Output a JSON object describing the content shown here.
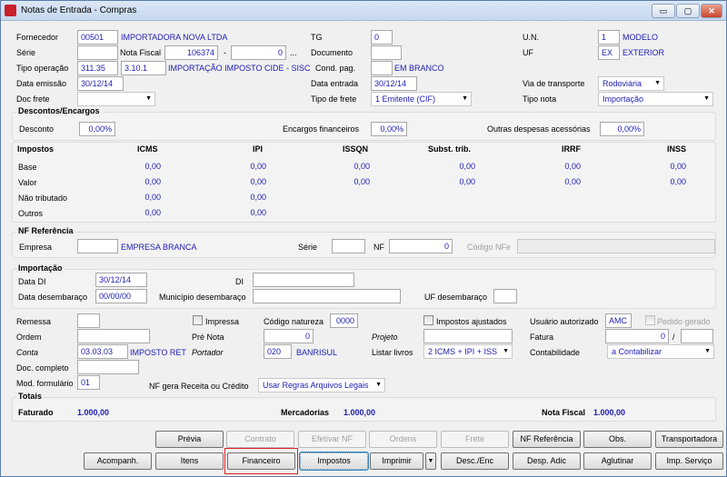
{
  "window": {
    "title": "Notas de Entrada - Compras",
    "min": "▭",
    "max": "▢",
    "close": "✕"
  },
  "header": {
    "fornecedor": {
      "label": "Fornecedor",
      "code": "00501",
      "name": "IMPORTADORA NOVA LTDA"
    },
    "tg": {
      "label": "TG",
      "value": "0"
    },
    "un": {
      "label": "U.N.",
      "code": "1",
      "name": "MODELO"
    },
    "serie": {
      "label": "Série",
      "value": ""
    },
    "nota_fiscal": {
      "label": "Nota Fiscal",
      "number": "106374",
      "sep": "-",
      "suffix": "0",
      "more": "..."
    },
    "documento": {
      "label": "Documento",
      "value": ""
    },
    "uf": {
      "label": "UF",
      "code": "EX",
      "name": "EXTERIOR"
    },
    "tipo_operacao": {
      "label": "Tipo operação",
      "code": "311.35",
      "cfop": "3.10.1",
      "name": "IMPORTAÇÃO IMPOSTO CIDE - SISC"
    },
    "cond_pag": {
      "label": "Cond. pag.",
      "code": "",
      "name": "EM BRANCO"
    },
    "data_emissao": {
      "label": "Data emissão",
      "value": "30/12/14"
    },
    "data_entrada": {
      "label": "Data entrada",
      "value": "30/12/14"
    },
    "via_transporte": {
      "label": "Via de transporte",
      "value": "Rodoviária"
    },
    "doc_frete": {
      "label": "Doc frete",
      "value": ""
    },
    "tipo_frete": {
      "label": "Tipo de frete",
      "value": "1 Emitente (CIF)"
    },
    "tipo_nota": {
      "label": "Tipo nota",
      "value": "Importação"
    }
  },
  "descontos": {
    "title": "Descontos/Encargos",
    "desconto_label": "Desconto",
    "desconto": "0,00%",
    "encargos_label": "Encargos financeiros",
    "encargos": "0,00%",
    "outras_label": "Outras despesas acessórias",
    "outras": "0,00%"
  },
  "impostos": {
    "title": "Impostos",
    "columns": [
      "ICMS",
      "IPI",
      "ISSQN",
      "Subst. trib.",
      "IRRF",
      "INSS"
    ],
    "rows": [
      {
        "label": "Base",
        "values": [
          "0,00",
          "0,00",
          "0,00",
          "0,00",
          "0,00",
          "0,00"
        ]
      },
      {
        "label": "Valor",
        "values": [
          "0,00",
          "0,00",
          "0,00",
          "0,00",
          "0,00",
          "0,00"
        ]
      },
      {
        "label": "Não tributado",
        "values": [
          "0,00",
          "0,00"
        ]
      },
      {
        "label": "Outros",
        "values": [
          "0,00",
          "0,00"
        ]
      }
    ]
  },
  "nf_referencia": {
    "title": "NF Referência",
    "empresa_label": "Empresa",
    "empresa_code": "",
    "empresa_name": "EMPRESA BRANCA",
    "serie_label": "Série",
    "serie": "",
    "nf_label": "NF",
    "nf": "0",
    "codigo_nfe_label": "Código NFe",
    "codigo_nfe": ""
  },
  "importacao": {
    "title": "Importação",
    "data_di_label": "Data DI",
    "data_di": "30/12/14",
    "di_label": "DI",
    "di": "",
    "data_desemb_label": "Data desembaraço",
    "data_desemb": "00/00/00",
    "municipio_label": "Município desembaraço",
    "municipio": "",
    "uf_desemb_label": "UF desembaraço",
    "uf_desemb": ""
  },
  "misc": {
    "remessa_label": "Remessa",
    "remessa": "",
    "impressa_label": "Impressa",
    "impressa": false,
    "codigo_natureza_label": "Código natureza",
    "codigo_natureza": "0000",
    "impostos_ajustados_label": "Impostos ajustados",
    "impostos_ajustados": false,
    "usuario_label": "Usuário autorizado",
    "usuario": "AMC",
    "pedido_gerado_label": "Pedido gerado",
    "pedido_gerado": false,
    "ordem_label": "Ordem",
    "ordem": "",
    "pre_nota_label": "Pré Nota",
    "pre_nota": "0",
    "projeto_label": "Projeto",
    "projeto": "",
    "fatura_label": "Fatura",
    "fatura": "0",
    "fatura_sep": "/",
    "fatura2": "",
    "conta_label": "Conta",
    "conta": "03.03.03",
    "conta_name": "IMPOSTO RET",
    "portador_label": "Portador",
    "portador": "020",
    "portador_name": "BANRISUL",
    "listar_livros_label": "Listar livros",
    "listar_livros": "2 ICMS + IPI + ISS",
    "contabilidade_label": "Contabilidade",
    "contabilidade": "a Contabilizar",
    "doc_completo_label": "Doc. completo",
    "doc_completo": "",
    "mod_formulario_label": "Mod. formulário",
    "mod_formulario": "01",
    "nf_gera_label": "NF gera Receita ou Crédito",
    "nf_gera": "Usar Regras Arquivos Legais"
  },
  "totais": {
    "title": "Totais",
    "faturado_label": "Faturado",
    "faturado": "1.000,00",
    "mercadorias_label": "Mercadorias",
    "mercadorias": "1.000,00",
    "nota_fiscal_label": "Nota Fiscal",
    "nota_fiscal": "1.000,00"
  },
  "buttons": {
    "previa": "Prévia",
    "contrato": "Contrato",
    "efetivar_nf": "Efetivar NF",
    "ordens": "Ordens",
    "frete": "Frete",
    "nf_referencia": "NF Referência",
    "obs": "Obs.",
    "transportadora": "Transportadora",
    "acompanh": "Acompanh.",
    "itens": "Itens",
    "financeiro": "Financeiro",
    "impostos": "Impostos",
    "imprimir": "Imprimir",
    "imprimir_menu": "▼",
    "desc_enc": "Desc./Enc",
    "desp_adic": "Desp. Adic",
    "aglutinar": "Aglutinar",
    "imp_servico": "Imp. Serviço"
  },
  "colors": {
    "value_text": "#1c1cb4",
    "highlight": "#e02020"
  }
}
